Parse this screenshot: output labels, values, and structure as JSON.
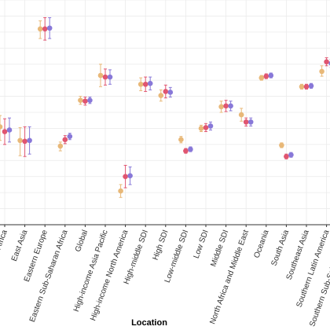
{
  "chart_data": {
    "type": "scatter",
    "xlabel": "Location",
    "ylabel": "",
    "categories": [
      "Africa",
      "East Asia",
      "Eastern Europe",
      "Eastern Sub-Saharan Africa",
      "Global",
      "High-income Asia Pacific",
      "High-income North America",
      "High-middle SDI",
      "High SDI",
      "Low-middle SDI",
      "Low SDI",
      "Middle SDI",
      "North Africa and Middle East",
      "Oceania",
      "South Asia",
      "Southeast Asia",
      "Southern Latin America",
      "Southern Sub-Saharan Africa"
    ],
    "ylim": [
      0,
      28
    ],
    "grid": true,
    "series": [
      {
        "color": "#e8b878",
        "values": [
          12.2,
          10.5,
          24.4,
          9.8,
          15.5,
          18.6,
          4.2,
          17.5,
          16.1,
          10.6,
          12.0,
          14.7,
          13.7,
          18.3,
          9.9,
          17.2,
          19.1,
          0
        ],
        "lower": [
          10.5,
          8.6,
          23.2,
          9.2,
          15.0,
          17.2,
          3.4,
          16.7,
          15.4,
          10.2,
          11.6,
          14.0,
          12.9,
          18.0,
          9.6,
          16.9,
          18.5,
          0
        ],
        "upper": [
          13.6,
          12.1,
          25.4,
          10.3,
          16.0,
          20.0,
          5.0,
          18.3,
          16.8,
          11.0,
          12.4,
          15.4,
          14.5,
          18.6,
          10.2,
          17.5,
          19.8,
          0
        ]
      },
      {
        "color": "#e05570",
        "values": [
          11.6,
          10.4,
          24.4,
          10.6,
          15.4,
          18.4,
          6.0,
          17.5,
          16.6,
          9.2,
          12.1,
          14.8,
          12.8,
          18.5,
          8.5,
          17.2,
          20.3,
          0
        ],
        "lower": [
          10.0,
          8.5,
          23.0,
          10.1,
          14.9,
          17.4,
          4.6,
          16.6,
          15.8,
          8.9,
          11.6,
          14.1,
          12.3,
          18.2,
          8.2,
          16.9,
          19.8,
          0
        ],
        "upper": [
          13.2,
          12.2,
          25.8,
          11.1,
          15.9,
          19.4,
          7.4,
          18.4,
          17.4,
          9.5,
          12.6,
          15.5,
          13.3,
          18.8,
          8.8,
          17.5,
          20.8,
          0
        ]
      },
      {
        "color": "#8878d8",
        "values": [
          11.8,
          10.5,
          24.5,
          11.0,
          15.5,
          18.4,
          6.1,
          17.6,
          16.5,
          9.4,
          12.3,
          14.8,
          12.8,
          18.6,
          8.7,
          17.3,
          20.1,
          0
        ],
        "lower": [
          10.3,
          8.8,
          23.2,
          10.6,
          15.1,
          17.5,
          5.0,
          16.8,
          15.9,
          9.1,
          11.8,
          14.2,
          12.3,
          18.3,
          8.4,
          17.0,
          19.6,
          0
        ],
        "upper": [
          13.3,
          12.2,
          25.8,
          11.4,
          15.9,
          19.3,
          7.2,
          18.4,
          17.1,
          9.7,
          12.8,
          15.4,
          13.3,
          18.9,
          9.0,
          17.6,
          20.6,
          0
        ]
      }
    ]
  }
}
